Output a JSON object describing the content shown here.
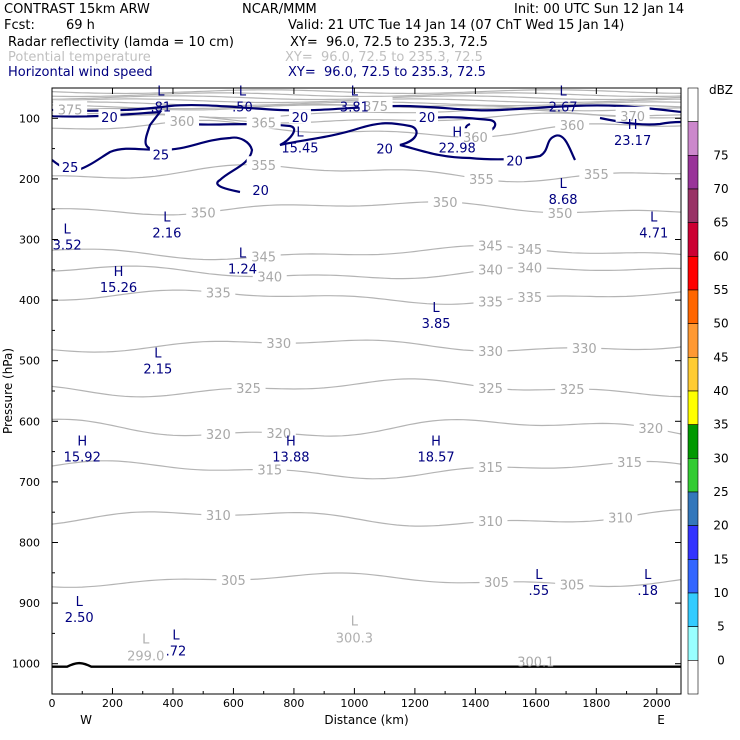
{
  "header": {
    "model": "CONTRAST 15km ARW",
    "center": "NCAR/MMM",
    "init": "Init: 00 UTC Sun 12 Jan 14",
    "fcst_label": "Fcst:",
    "fcst_value": "69 h",
    "valid": "Valid: 21 UTC Tue 14 Jan 14 (07 ChT Wed 15 Jan 14)",
    "fields": [
      {
        "name": "Radar reflectivity (lamda = 10 cm)",
        "xy": "XY=  96.0, 72.5 to 235.3, 72.5",
        "color": "#000000"
      },
      {
        "name": "Potential temperature",
        "xy": "XY=  96.0, 72.5 to 235.3, 72.5",
        "color": "#c0c0c0"
      },
      {
        "name": "Horizontal wind speed",
        "xy": "XY=  96.0, 72.5 to 235.3, 72.5",
        "color": "#000080"
      }
    ]
  },
  "chart_data": {
    "type": "contour",
    "xlabel": "Distance (km)",
    "ylabel": "Pressure (hPa)",
    "x_ticks": [
      0,
      200,
      400,
      600,
      800,
      1000,
      1200,
      1400,
      1600,
      1800,
      2000
    ],
    "x_range": [
      0,
      2080
    ],
    "y_ticks": [
      100,
      200,
      300,
      400,
      500,
      600,
      700,
      800,
      900,
      1000
    ],
    "y_range": [
      1050,
      50
    ],
    "x_end_labels": {
      "left": "W",
      "right": "E"
    },
    "colorbar": {
      "unit": "dBZ",
      "levels": [
        0,
        5,
        10,
        15,
        20,
        25,
        30,
        35,
        40,
        45,
        50,
        55,
        60,
        65,
        70,
        75
      ],
      "colors": [
        "#ffffff",
        "#99ffff",
        "#33ccff",
        "#3366ff",
        "#3333ff",
        "#3377bb",
        "#33cc33",
        "#009900",
        "#ffff00",
        "#ffcc33",
        "#ff9933",
        "#ff6600",
        "#ff0000",
        "#cc0033",
        "#993366",
        "#993399",
        "#cc88cc",
        "#ffffff"
      ]
    },
    "theta_contours": [
      {
        "value": 300,
        "label_x": 1600,
        "baseline": 998,
        "labels": [
          "300.1"
        ]
      },
      {
        "value": 305,
        "baseline": 862,
        "amp": 8,
        "labels_at": [
          600,
          1470,
          1720
        ]
      },
      {
        "value": 310,
        "baseline": 760,
        "amp": 10,
        "labels_at": [
          550,
          1450,
          1880
        ]
      },
      {
        "value": 315,
        "baseline": 680,
        "amp": 10,
        "labels_at": [
          720,
          1450,
          1910
        ]
      },
      {
        "value": 320,
        "baseline": 612,
        "amp": 12,
        "labels_at": [
          550,
          750,
          1980
        ]
      },
      {
        "value": 325,
        "baseline": 545,
        "amp": 10,
        "labels_at": [
          650,
          1450,
          1720
        ]
      },
      {
        "value": 330,
        "baseline": 475,
        "amp": 8,
        "labels_at": [
          750,
          1450,
          1760
        ]
      },
      {
        "value": 335,
        "baseline": 395,
        "amp": 8,
        "labels_at": [
          550,
          1450,
          1580
        ]
      },
      {
        "value": 340,
        "baseline": 355,
        "amp": 8,
        "labels_at": [
          720,
          1450,
          1580
        ]
      },
      {
        "value": 345,
        "baseline": 322,
        "amp": 8,
        "labels_at": [
          700,
          1450,
          1580
        ]
      },
      {
        "value": 350,
        "baseline": 248,
        "amp": 8,
        "labels_at": [
          500,
          1300,
          1680
        ]
      },
      {
        "value": 355,
        "baseline": 190,
        "amp": 10,
        "labels_at": [
          700,
          1420,
          1800
        ]
      },
      {
        "value": 360,
        "baseline": 118,
        "amp": 10,
        "labels_at": [
          430,
          1400,
          1720
        ]
      },
      {
        "value": 365,
        "baseline": 100,
        "amp": 6,
        "labels_at": [
          700
        ]
      },
      {
        "value": 370,
        "baseline": 92,
        "amp": 5,
        "labels_at": [
          1920
        ]
      },
      {
        "value": 375,
        "baseline": 82,
        "amp": 4,
        "labels_at": [
          60,
          1070
        ]
      }
    ],
    "theta_extrema": [
      {
        "type": "L",
        "x": 310,
        "p": 970,
        "value": "299.0"
      },
      {
        "type": "L",
        "x": 1000,
        "p": 940,
        "value": "300.3"
      }
    ],
    "wind_contour_labels": [
      {
        "value": 20,
        "x": 190,
        "p": 98
      },
      {
        "value": 20,
        "x": 820,
        "p": 98
      },
      {
        "value": 20,
        "x": 1240,
        "p": 98
      },
      {
        "value": 20,
        "x": 1100,
        "p": 150
      },
      {
        "value": 20,
        "x": 1530,
        "p": 170
      },
      {
        "value": 20,
        "x": 690,
        "p": 218
      },
      {
        "value": 25,
        "x": 60,
        "p": 180
      },
      {
        "value": 25,
        "x": 360,
        "p": 160
      }
    ],
    "wind_extrema": [
      {
        "type": "L",
        "x": 360,
        "p": 62,
        "value": ".81"
      },
      {
        "type": "L",
        "x": 630,
        "p": 62,
        "value": ".50"
      },
      {
        "type": "L",
        "x": 1000,
        "p": 62,
        "value": "3.81"
      },
      {
        "type": "L",
        "x": 1690,
        "p": 62,
        "value": "2.67"
      },
      {
        "type": "L",
        "x": 820,
        "p": 130,
        "value": "15.45"
      },
      {
        "type": "H",
        "x": 1340,
        "p": 130,
        "value": "22.98"
      },
      {
        "type": "H",
        "x": 1920,
        "p": 118,
        "value": "23.17"
      },
      {
        "type": "L",
        "x": 1690,
        "p": 215,
        "value": "8.68"
      },
      {
        "type": "L",
        "x": 50,
        "p": 290,
        "value": "3.52"
      },
      {
        "type": "L",
        "x": 380,
        "p": 270,
        "value": "2.16"
      },
      {
        "type": "L",
        "x": 630,
        "p": 330,
        "value": "1.24"
      },
      {
        "type": "L",
        "x": 1990,
        "p": 270,
        "value": "4.71"
      },
      {
        "type": "H",
        "x": 220,
        "p": 360,
        "value": "15.26"
      },
      {
        "type": "L",
        "x": 1270,
        "p": 420,
        "value": "3.85"
      },
      {
        "type": "L",
        "x": 350,
        "p": 495,
        "value": "2.15"
      },
      {
        "type": "H",
        "x": 100,
        "p": 640,
        "value": "15.92"
      },
      {
        "type": "H",
        "x": 790,
        "p": 640,
        "value": "13.88"
      },
      {
        "type": "H",
        "x": 1270,
        "p": 640,
        "value": "18.57"
      },
      {
        "type": "L",
        "x": 1610,
        "p": 860,
        "value": ".55"
      },
      {
        "type": "L",
        "x": 1970,
        "p": 860,
        "value": ".18"
      },
      {
        "type": "L",
        "x": 90,
        "p": 905,
        "value": "2.50"
      },
      {
        "type": "L",
        "x": 410,
        "p": 960,
        "value": ".72"
      }
    ],
    "ground_p": 1005
  }
}
